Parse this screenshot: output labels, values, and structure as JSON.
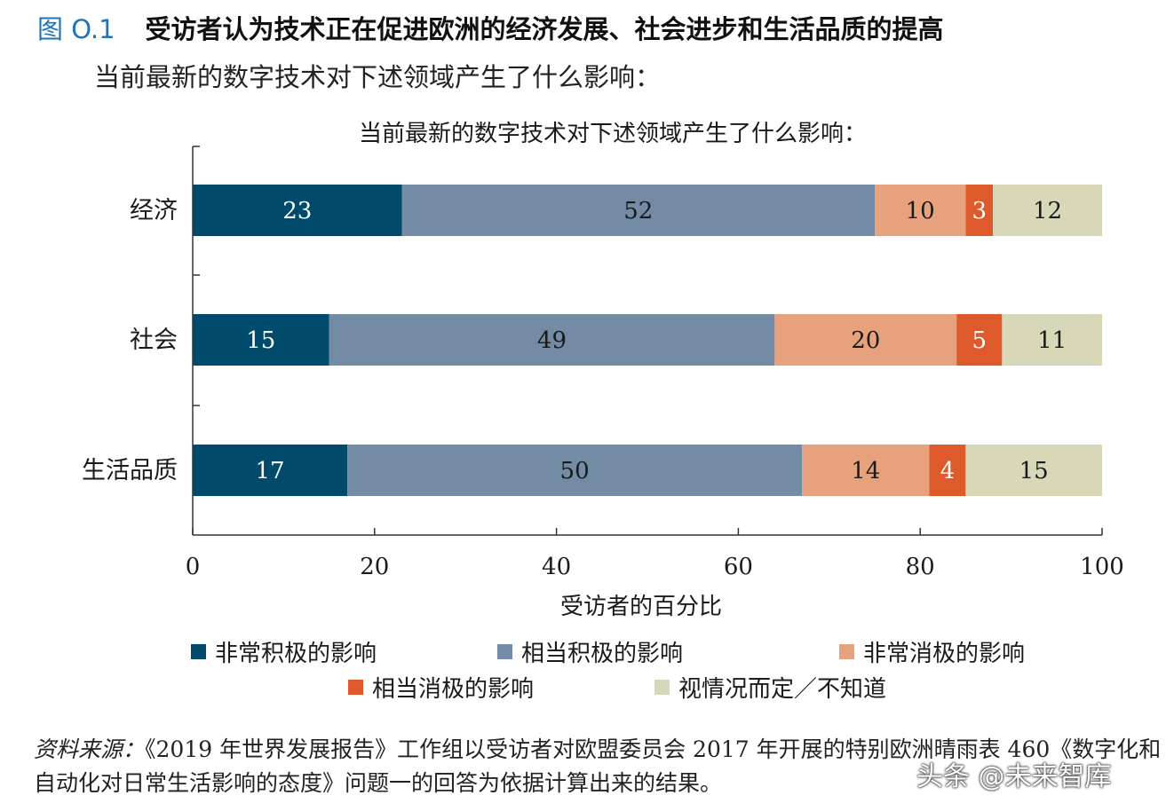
{
  "figure": {
    "number": "图 O.1",
    "title": "受访者认为技术正在促进欧洲的经济发展、社会进步和生活品质的提高",
    "subtitle": "当前最新的数字技术对下述领域产生了什么影响："
  },
  "chart_data": {
    "type": "bar",
    "orientation": "horizontal",
    "stacked": true,
    "title": "当前最新的数字技术对下述领域产生了什么影响：",
    "xlabel": "受访者的百分比",
    "ylabel": "",
    "xlim": [
      0,
      100
    ],
    "xticks": [
      0,
      20,
      40,
      60,
      80,
      100
    ],
    "categories": [
      "经济",
      "社会",
      "生活品质"
    ],
    "series": [
      {
        "name": "非常积极的影响",
        "color": "#004a6b",
        "values": [
          23,
          15,
          17
        ]
      },
      {
        "name": "相当积极的影响",
        "color": "#738ba4",
        "values": [
          52,
          49,
          50
        ]
      },
      {
        "name": "非常消极的影响",
        "color": "#e8a17d",
        "values": [
          10,
          20,
          14
        ]
      },
      {
        "name": "相当消极的影响",
        "color": "#de5a2b",
        "values": [
          3,
          5,
          4
        ]
      },
      {
        "name": "视情况而定／不知道",
        "color": "#d8d7b8",
        "values": [
          12,
          11,
          15
        ]
      }
    ],
    "label_colors": [
      "#ffffff",
      "#1a1a1a",
      "#1a1a1a",
      "#ffffff",
      "#1a1a1a"
    ],
    "grid": false,
    "legend_position": "bottom"
  },
  "source": {
    "label": "资料来源：",
    "text": "《2019 年世界发展报告》工作组以受访者对欧盟委员会 2017 年开展的特别欧洲晴雨表 460《数字化和自动化对日常生活影响的态度》问题一的回答为依据计算出来的结果。"
  },
  "watermark": "头条 @未来智库"
}
